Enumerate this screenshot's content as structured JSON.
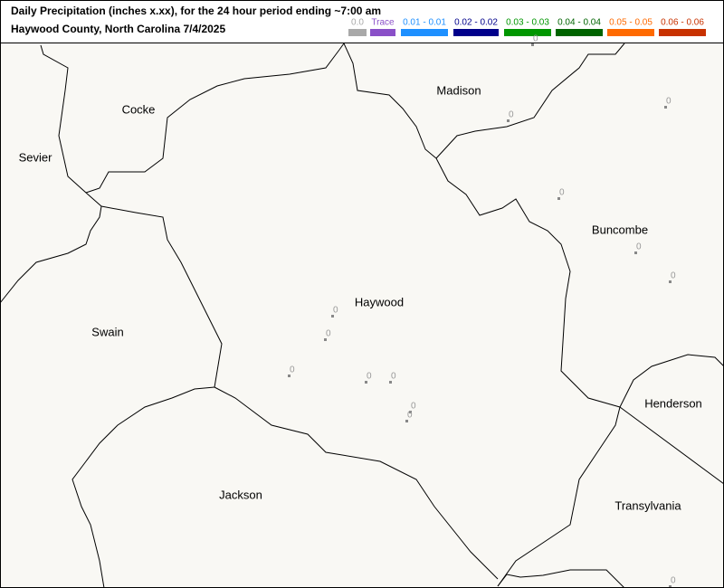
{
  "header": {
    "title": "Daily Precipitation (inches  x.xx),  for the 24 hour period ending ~7:00 am",
    "subtitle": "Haywood County, North Carolina  7/4/2025"
  },
  "legend": [
    {
      "label": "0.0",
      "color": "#a9a9a9"
    },
    {
      "label": "Trace",
      "color": "#8a50c8"
    },
    {
      "label": "0.01 - 0.01",
      "color": "#1e90ff"
    },
    {
      "label": "0.02 - 0.02",
      "color": "#00008b"
    },
    {
      "label": "0.03 - 0.03",
      "color": "#009600"
    },
    {
      "label": "0.04 - 0.04",
      "color": "#006400"
    },
    {
      "label": "0.05 - 0.05",
      "color": "#ff6a00"
    },
    {
      "label": "0.06 - 0.06",
      "color": "#c83200"
    }
  ],
  "counties": [
    "Sevier",
    "Cocke",
    "Madison",
    "Buncombe",
    "Haywood",
    "Swain",
    "Henderson",
    "Jackson",
    "Transylvania"
  ],
  "stations": [
    0,
    0,
    0,
    0,
    0,
    0,
    0,
    0,
    0,
    0,
    0,
    0,
    0,
    0
  ]
}
